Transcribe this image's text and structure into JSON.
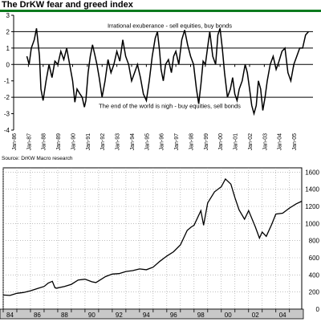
{
  "top_title": "The DrKW fear and greed index",
  "source": "Source: DrKW Macro research",
  "chart_data": [
    {
      "type": "line",
      "title": "The DrKW fear and greed index",
      "ylim": [
        -4,
        3
      ],
      "yticks": [
        3,
        2,
        1,
        0,
        -1,
        -2,
        -3,
        -4
      ],
      "xlim": [
        1986.0,
        2006.3
      ],
      "x_tick_labels": [
        "Jan-86",
        "Jan-87",
        "Jan-88",
        "Jan-89",
        "Jan-90",
        "Jan-91",
        "Jan-92",
        "Jan-93",
        "Jan-94",
        "Jan-95",
        "Jan-96",
        "Jan-97",
        "Jan-98",
        "Jan-99",
        "Jan-00",
        "Jan-01",
        "Jan-02",
        "Jan-03",
        "Jan-04",
        "Jan-05"
      ],
      "reference_lines": [
        2,
        1,
        -2
      ],
      "annotations": [
        {
          "text": "Irrational exuberance - sell equities, buy bonds",
          "y": 2.4
        },
        {
          "text": "The end of the world is nigh - buy equities, sell bonds",
          "y": -2.5
        }
      ],
      "series": [
        {
          "x": [
            1986.9,
            1987.05,
            1987.2,
            1987.4,
            1987.55,
            1987.75,
            1987.85,
            1988.0,
            1988.2,
            1988.4,
            1988.6,
            1988.8,
            1989.0,
            1989.2,
            1989.4,
            1989.6,
            1989.8,
            1990.0,
            1990.15,
            1990.3,
            1990.5,
            1990.65,
            1990.8,
            1990.9,
            1991.05,
            1991.2,
            1991.35,
            1991.5,
            1991.65,
            1991.8,
            1992.0,
            1992.2,
            1992.4,
            1992.6,
            1992.8,
            1993.0,
            1993.2,
            1993.4,
            1993.6,
            1993.8,
            1994.0,
            1994.2,
            1994.4,
            1994.6,
            1994.8,
            1995.0,
            1995.2,
            1995.4,
            1995.6,
            1995.75,
            1995.9,
            1996.0,
            1996.15,
            1996.3,
            1996.5,
            1996.7,
            1996.85,
            1997.0,
            1997.2,
            1997.4,
            1997.6,
            1997.8,
            1998.0,
            1998.2,
            1998.4,
            1998.55,
            1998.7,
            1998.85,
            1999.0,
            1999.15,
            1999.3,
            1999.5,
            1999.7,
            1999.85,
            2000.0,
            2000.15,
            2000.3,
            2000.5,
            2000.7,
            2000.85,
            2001.0,
            2001.15,
            2001.3,
            2001.5,
            2001.7,
            2001.85,
            2002.0,
            2002.15,
            2002.3,
            2002.45,
            2002.6,
            2002.75,
            2002.9,
            2003.05,
            2003.2,
            2003.4,
            2003.6,
            2003.8,
            2004.0,
            2004.2,
            2004.4,
            2004.6,
            2004.8,
            2005.0,
            2005.2,
            2005.4,
            2005.6,
            2005.8,
            2006.0
          ],
          "y": [
            0.5,
            0.0,
            1.0,
            1.5,
            2.2,
            0.5,
            -1.5,
            -2.2,
            -1.0,
            0.0,
            -0.8,
            0.2,
            0.0,
            0.8,
            0.3,
            1.0,
            0.0,
            -1.0,
            -2.3,
            -1.5,
            -1.8,
            -2.0,
            -2.6,
            -2.2,
            -0.5,
            0.5,
            1.2,
            0.6,
            0.0,
            -0.8,
            -2.0,
            -1.0,
            0.3,
            -0.5,
            0.0,
            0.8,
            0.2,
            1.5,
            0.5,
            0.0,
            -1.0,
            -0.5,
            0.0,
            -0.8,
            -1.8,
            -2.2,
            -1.0,
            0.5,
            1.6,
            2.0,
            0.8,
            -0.3,
            -1.0,
            0.0,
            0.3,
            -0.5,
            0.5,
            0.8,
            0.0,
            1.5,
            2.1,
            1.2,
            0.5,
            0.0,
            -1.5,
            -2.4,
            -1.2,
            0.2,
            0.0,
            1.0,
            2.0,
            0.5,
            0.0,
            1.8,
            2.2,
            1.0,
            -0.5,
            -2.0,
            -1.5,
            -0.8,
            -1.8,
            -2.2,
            -1.5,
            -1.0,
            0.0,
            -0.5,
            -1.5,
            -2.5,
            -3.0,
            -2.5,
            -1.0,
            -1.5,
            -2.8,
            -2.0,
            -1.0,
            0.0,
            0.5,
            -0.3,
            0.2,
            0.8,
            1.0,
            -0.5,
            -1.0,
            0.0,
            0.5,
            1.0,
            1.0,
            1.8,
            2.0
          ]
        }
      ]
    },
    {
      "type": "line",
      "ylim": [
        0,
        1650
      ],
      "yticks": [
        0,
        200,
        400,
        600,
        800,
        1000,
        1200,
        1400,
        1600
      ],
      "xlim": [
        1984.0,
        2005.9
      ],
      "x_tick_labels": [
        "84",
        "86",
        "88",
        "90",
        "92",
        "94",
        "96",
        "98",
        "00",
        "02",
        "04"
      ],
      "series": [
        {
          "x": [
            1984.0,
            1984.5,
            1985.0,
            1985.5,
            1986.0,
            1986.5,
            1987.0,
            1987.3,
            1987.6,
            1987.8,
            1987.9,
            1988.5,
            1989.0,
            1989.5,
            1990.0,
            1990.5,
            1990.8,
            1991.0,
            1991.5,
            1992.0,
            1992.5,
            1993.0,
            1993.5,
            1994.0,
            1994.5,
            1995.0,
            1995.5,
            1996.0,
            1996.5,
            1997.0,
            1997.5,
            1997.8,
            1998.0,
            1998.5,
            1998.7,
            1999.0,
            1999.5,
            2000.0,
            2000.3,
            2000.7,
            2001.0,
            2001.3,
            2001.7,
            2002.0,
            2002.5,
            2002.8,
            2003.0,
            2003.3,
            2003.7,
            2004.0,
            2004.5,
            2005.0,
            2005.5,
            2005.9
          ],
          "y": [
            165,
            160,
            185,
            195,
            215,
            240,
            265,
            305,
            325,
            250,
            245,
            265,
            290,
            340,
            350,
            320,
            310,
            330,
            380,
            410,
            415,
            440,
            450,
            470,
            460,
            490,
            560,
            620,
            670,
            750,
            920,
            960,
            980,
            1150,
            980,
            1240,
            1370,
            1430,
            1520,
            1460,
            1300,
            1160,
            1050,
            1150,
            960,
            830,
            900,
            850,
            990,
            1110,
            1120,
            1180,
            1230,
            1260
          ]
        }
      ]
    }
  ]
}
